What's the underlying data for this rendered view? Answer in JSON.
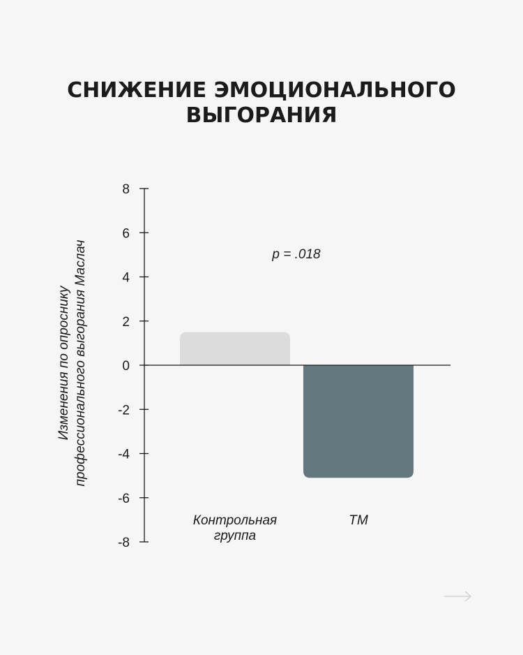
{
  "title": {
    "line1": "СНИЖЕНИЕ ЭМОЦИОНАЛЬНОГО",
    "line2": "ВЫГОРАНИЯ"
  },
  "chart_data": {
    "type": "bar",
    "categories": [
      [
        "Контрольная",
        "группа"
      ],
      [
        "ТМ"
      ]
    ],
    "values": [
      1.5,
      -5.1
    ],
    "colors": [
      "#dcdcdc",
      "#62777e"
    ],
    "ylabel": [
      "Изменения по опроснику",
      "профессионального выгорания Маслач"
    ],
    "ylim": [
      -8,
      8
    ],
    "yticks": [
      8,
      6,
      4,
      2,
      0,
      -2,
      -4,
      -6,
      -8
    ],
    "annotation": "p = .018",
    "grid": false
  },
  "nav": {
    "next_icon": "arrow-right-icon"
  }
}
